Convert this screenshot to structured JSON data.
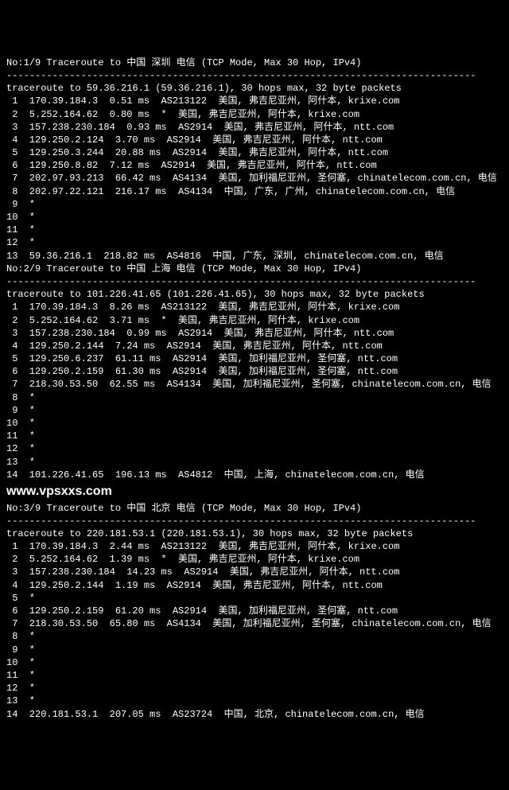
{
  "traces": [
    {
      "header": "No:1/9 Traceroute to 中国 深圳 电信 (TCP Mode, Max 30 Hop, IPv4)",
      "divider": "----------------------------------------------------------------------------------",
      "cmd": "traceroute to 59.36.216.1 (59.36.216.1), 30 hops max, 32 byte packets",
      "hops": [
        " 1  170.39.184.3  0.51 ms  AS213122  美国, 弗吉尼亚州, 阿什本, krixe.com",
        " 2  5.252.164.62  0.80 ms  *  美国, 弗吉尼亚州, 阿什本, krixe.com",
        " 3  157.238.230.184  0.93 ms  AS2914  美国, 弗吉尼亚州, 阿什本, ntt.com",
        " 4  129.250.2.124  3.70 ms  AS2914  美国, 弗吉尼亚州, 阿什本, ntt.com",
        " 5  129.250.3.244  20.88 ms  AS2914  美国, 弗吉尼亚州, 阿什本, ntt.com",
        " 6  129.250.8.82  7.12 ms  AS2914  美国, 弗吉尼亚州, 阿什本, ntt.com",
        " 7  202.97.93.213  66.42 ms  AS4134  美国, 加利福尼亚州, 圣何塞, chinatelecom.com.cn, 电信",
        " 8  202.97.22.121  216.17 ms  AS4134  中国, 广东, 广州, chinatelecom.com.cn, 电信",
        " 9  *",
        "10  *",
        "11  *",
        "12  *",
        "13  59.36.216.1  218.82 ms  AS4816  中国, 广东, 深圳, chinatelecom.com.cn, 电信"
      ]
    },
    {
      "header": "No:2/9 Traceroute to 中国 上海 电信 (TCP Mode, Max 30 Hop, IPv4)",
      "divider": "----------------------------------------------------------------------------------",
      "cmd": "traceroute to 101.226.41.65 (101.226.41.65), 30 hops max, 32 byte packets",
      "hops": [
        " 1  170.39.184.3  8.26 ms  AS213122  美国, 弗吉尼亚州, 阿什本, krixe.com",
        " 2  5.252.164.62  3.71 ms  *  美国, 弗吉尼亚州, 阿什本, krixe.com",
        " 3  157.238.230.184  0.99 ms  AS2914  美国, 弗吉尼亚州, 阿什本, ntt.com",
        " 4  129.250.2.144  7.24 ms  AS2914  美国, 弗吉尼亚州, 阿什本, ntt.com",
        " 5  129.250.6.237  61.11 ms  AS2914  美国, 加利福尼亚州, 圣何塞, ntt.com",
        " 6  129.250.2.159  61.30 ms  AS2914  美国, 加利福尼亚州, 圣何塞, ntt.com",
        " 7  218.30.53.50  62.55 ms  AS4134  美国, 加利福尼亚州, 圣何塞, chinatelecom.com.cn, 电信",
        " 8  *",
        " 9  *",
        "10  *",
        "11  *",
        "12  *",
        "13  *",
        "14  101.226.41.65  196.13 ms  AS4812  中国, 上海, chinatelecom.com.cn, 电信"
      ]
    },
    {
      "header": "No:3/9 Traceroute to 中国 北京 电信 (TCP Mode, Max 30 Hop, IPv4)",
      "divider": "----------------------------------------------------------------------------------",
      "cmd": "traceroute to 220.181.53.1 (220.181.53.1), 30 hops max, 32 byte packets",
      "hops": [
        " 1  170.39.184.3  2.44 ms  AS213122  美国, 弗吉尼亚州, 阿什本, krixe.com",
        " 2  5.252.164.62  1.39 ms  *  美国, 弗吉尼亚州, 阿什本, krixe.com",
        " 3  157.238.230.184  14.23 ms  AS2914  美国, 弗吉尼亚州, 阿什本, ntt.com",
        " 4  129.250.2.144  1.19 ms  AS2914  美国, 弗吉尼亚州, 阿什本, ntt.com",
        " 5  *",
        " 6  129.250.2.159  61.20 ms  AS2914  美国, 加利福尼亚州, 圣何塞, ntt.com",
        " 7  218.30.53.50  65.80 ms  AS4134  美国, 加利福尼亚州, 圣何塞, chinatelecom.com.cn, 电信",
        " 8  *",
        " 9  *",
        "10  *",
        "11  *",
        "12  *",
        "13  *",
        "14  220.181.53.1  207.05 ms  AS23724  中国, 北京, chinatelecom.com.cn, 电信"
      ]
    }
  ],
  "watermark": "www.vpsxxs.com"
}
